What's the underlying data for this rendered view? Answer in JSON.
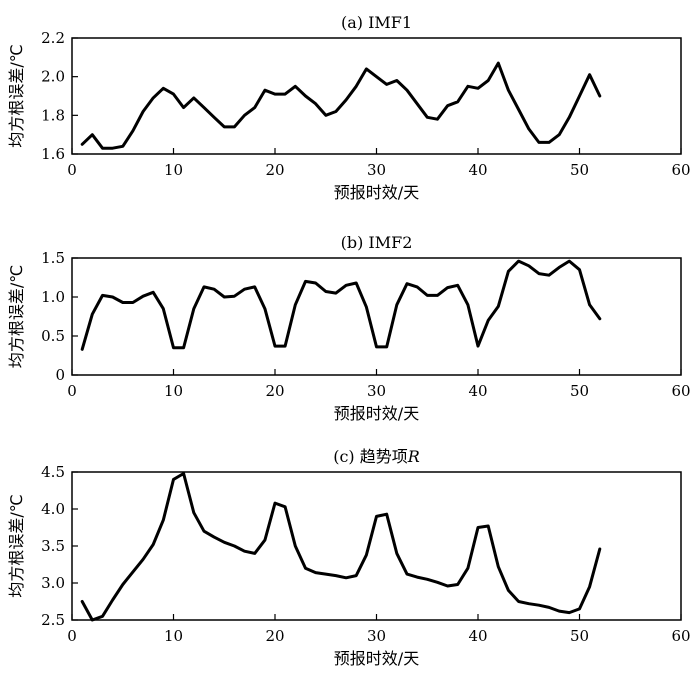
{
  "chart_data": [
    {
      "type": "line",
      "title": "(a) IMF1",
      "xlabel": "预报时效/天",
      "ylabel": "均方根误差/℃",
      "xlim": [
        0,
        60
      ],
      "ylim": [
        1.6,
        2.2
      ],
      "xticks": [
        "0",
        "10",
        "20",
        "30",
        "40",
        "50",
        "60"
      ],
      "yticks": [
        "1.6",
        "1.8",
        "2.0",
        "2.2"
      ],
      "grid": false,
      "x": [
        1,
        2,
        3,
        4,
        5,
        6,
        7,
        8,
        9,
        10,
        11,
        12,
        13,
        14,
        15,
        16,
        17,
        18,
        19,
        20,
        21,
        22,
        23,
        24,
        25,
        26,
        27,
        28,
        29,
        30,
        31,
        32,
        33,
        34,
        35,
        36,
        37,
        38,
        39,
        40,
        41,
        42,
        43,
        44,
        45,
        46,
        47,
        48,
        49,
        50,
        51,
        52
      ],
      "series": [
        {
          "values": [
            1.65,
            1.7,
            1.63,
            1.63,
            1.64,
            1.72,
            1.82,
            1.89,
            1.94,
            1.91,
            1.84,
            1.89,
            1.84,
            1.79,
            1.74,
            1.74,
            1.8,
            1.84,
            1.93,
            1.91,
            1.91,
            1.95,
            1.9,
            1.86,
            1.8,
            1.82,
            1.88,
            1.95,
            2.04,
            2.0,
            1.96,
            1.98,
            1.93,
            1.86,
            1.79,
            1.78,
            1.85,
            1.87,
            1.95,
            1.94,
            1.98,
            2.07,
            1.93,
            1.83,
            1.73,
            1.66,
            1.66,
            1.7,
            1.79,
            1.9,
            2.01,
            1.9
          ]
        }
      ]
    },
    {
      "type": "line",
      "title": "(b) IMF2",
      "xlabel": "预报时效/天",
      "ylabel": "均方根误差/℃",
      "xlim": [
        0,
        60
      ],
      "ylim": [
        0,
        1.5
      ],
      "xticks": [
        "0",
        "10",
        "20",
        "30",
        "40",
        "50",
        "60"
      ],
      "yticks": [
        "0",
        "0.5",
        "1.0",
        "1.5"
      ],
      "grid": false,
      "x": [
        1,
        2,
        3,
        4,
        5,
        6,
        7,
        8,
        9,
        10,
        11,
        12,
        13,
        14,
        15,
        16,
        17,
        18,
        19,
        20,
        21,
        22,
        23,
        24,
        25,
        26,
        27,
        28,
        29,
        30,
        31,
        32,
        33,
        34,
        35,
        36,
        37,
        38,
        39,
        40,
        41,
        42,
        43,
        44,
        45,
        46,
        47,
        48,
        49,
        50,
        51,
        52
      ],
      "series": [
        {
          "values": [
            0.33,
            0.78,
            1.02,
            1.0,
            0.93,
            0.93,
            1.01,
            1.06,
            0.85,
            0.35,
            0.35,
            0.85,
            1.13,
            1.1,
            1.0,
            1.01,
            1.1,
            1.13,
            0.85,
            0.37,
            0.37,
            0.9,
            1.2,
            1.18,
            1.07,
            1.05,
            1.15,
            1.18,
            0.87,
            0.36,
            0.36,
            0.9,
            1.17,
            1.13,
            1.02,
            1.02,
            1.12,
            1.15,
            0.9,
            0.37,
            0.7,
            0.88,
            1.33,
            1.46,
            1.4,
            1.3,
            1.28,
            1.38,
            1.46,
            1.35,
            0.9,
            0.72
          ]
        }
      ]
    },
    {
      "type": "line",
      "title": "(c) 趋势项",
      "title_italic": "R",
      "xlabel": "预报时效/天",
      "ylabel": "均方根误差/℃",
      "xlim": [
        0,
        60
      ],
      "ylim": [
        2.5,
        4.5
      ],
      "xticks": [
        "0",
        "10",
        "20",
        "30",
        "40",
        "50",
        "60"
      ],
      "yticks": [
        "2.5",
        "3.0",
        "3.5",
        "4.0",
        "4.5"
      ],
      "grid": false,
      "x": [
        1,
        2,
        3,
        4,
        5,
        6,
        7,
        8,
        9,
        10,
        11,
        12,
        13,
        14,
        15,
        16,
        17,
        18,
        19,
        20,
        21,
        22,
        23,
        24,
        25,
        26,
        27,
        28,
        29,
        30,
        31,
        32,
        33,
        34,
        35,
        36,
        37,
        38,
        39,
        40,
        41,
        42,
        43,
        44,
        45,
        46,
        47,
        48,
        49,
        50,
        51,
        52
      ],
      "series": [
        {
          "values": [
            2.75,
            2.5,
            2.55,
            2.77,
            2.98,
            3.15,
            3.32,
            3.52,
            3.85,
            4.4,
            4.48,
            3.95,
            3.7,
            3.62,
            3.55,
            3.5,
            3.43,
            3.4,
            3.58,
            4.08,
            4.03,
            3.5,
            3.2,
            3.14,
            3.12,
            3.1,
            3.07,
            3.1,
            3.38,
            3.9,
            3.93,
            3.4,
            3.12,
            3.08,
            3.05,
            3.01,
            2.96,
            2.98,
            3.2,
            3.75,
            3.77,
            3.22,
            2.9,
            2.75,
            2.72,
            2.7,
            2.67,
            2.62,
            2.6,
            2.65,
            2.95,
            3.46
          ]
        }
      ]
    }
  ]
}
